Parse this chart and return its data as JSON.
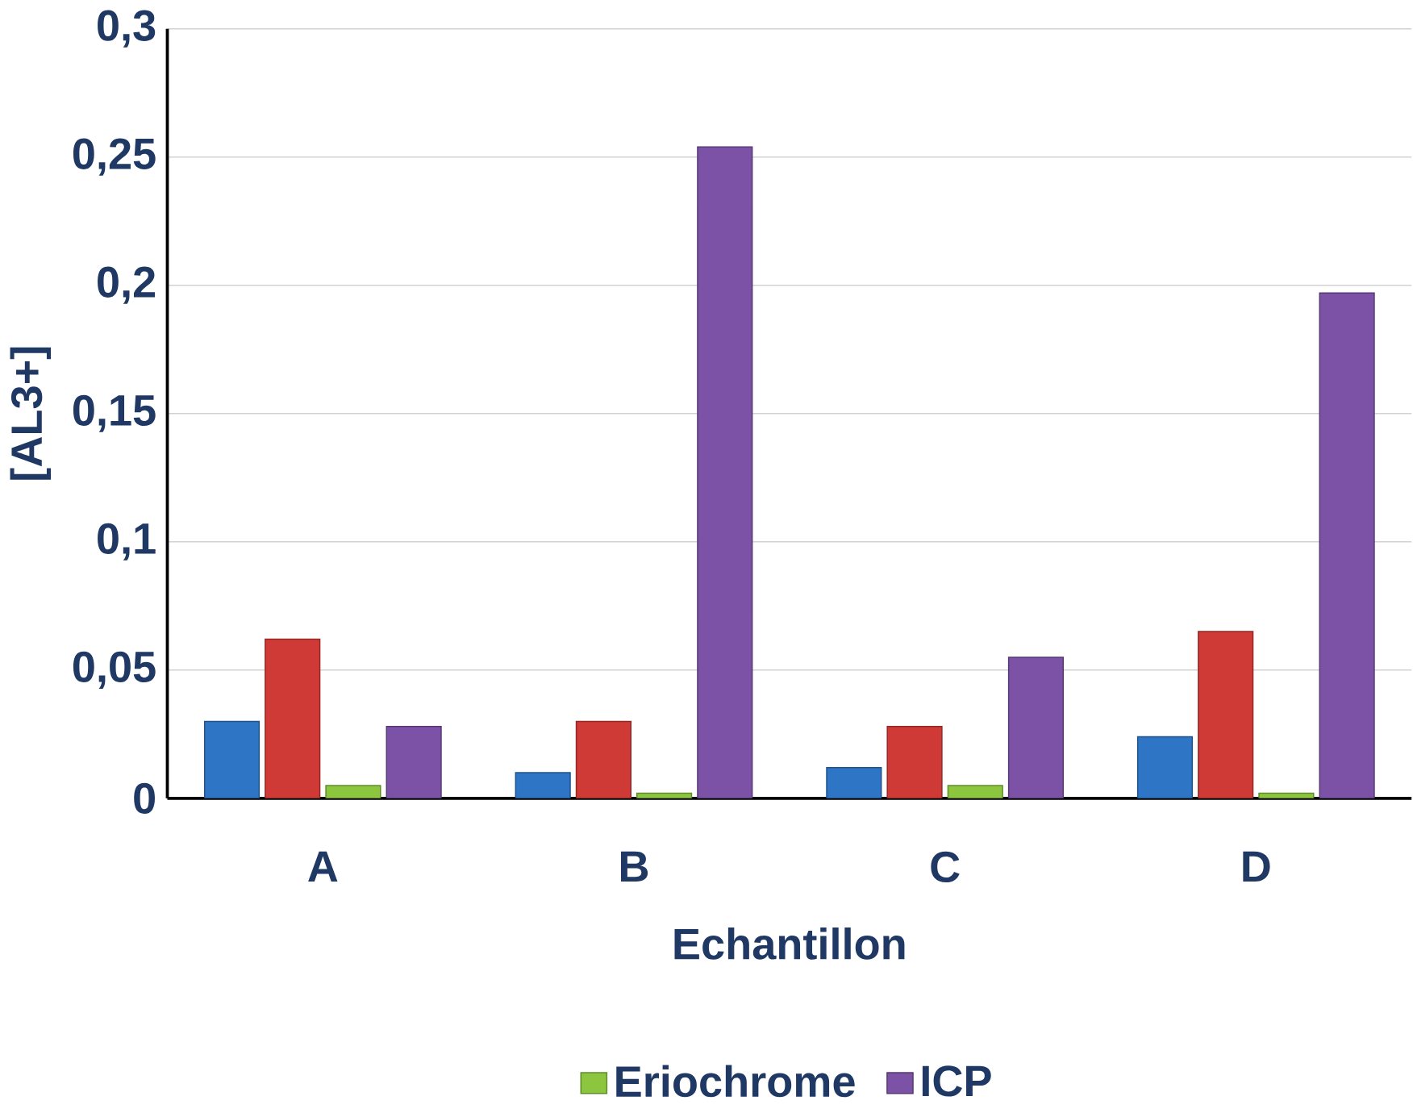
{
  "chart_data": {
    "type": "bar",
    "xlabel": "Echantillon",
    "ylabel": "[AL3+]",
    "categories": [
      "A",
      "B",
      "C",
      "D"
    ],
    "series": [
      {
        "color": "#2e75c6",
        "values": [
          0.03,
          0.01,
          0.012,
          0.024
        ]
      },
      {
        "color": "#d03a36",
        "values": [
          0.062,
          0.03,
          0.028,
          0.065
        ]
      },
      {
        "name": "Eriochrome",
        "color": "#8cc63f",
        "values": [
          0.005,
          0.002,
          0.005,
          0.002
        ]
      },
      {
        "name": "ICP",
        "color": "#7b52a6",
        "values": [
          0.028,
          0.254,
          0.055,
          0.197
        ]
      }
    ],
    "ylim": [
      0,
      0.3
    ],
    "yticks": [
      0,
      {
        "value": 0.05,
        "label": "0,05"
      },
      {
        "value": 0.1,
        "label": "0,1"
      },
      {
        "value": 0.15,
        "label": "0,15"
      },
      {
        "value": 0.2,
        "label": "0,2"
      },
      {
        "value": 0.25,
        "label": "0,25"
      },
      {
        "value": 0.3,
        "label": "0,3"
      }
    ],
    "grid": "y",
    "legend": "bottom"
  }
}
